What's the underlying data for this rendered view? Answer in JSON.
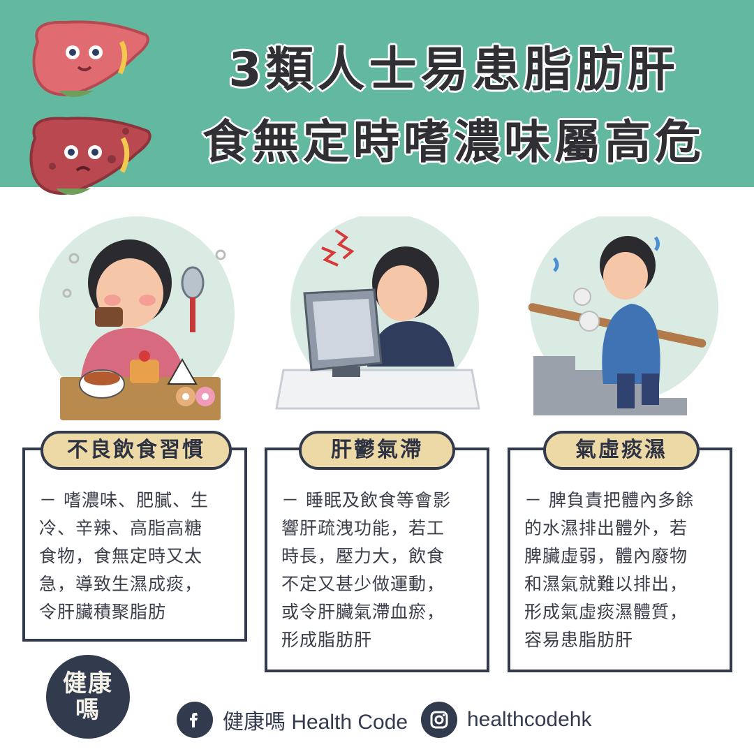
{
  "header": {
    "title_line1": "3類人士易患脂肪肝",
    "title_line2": "食無定時嗜濃味屬高危"
  },
  "cards": [
    {
      "badge": "不良飲食習慣",
      "lines": [
        "－ 嗜濃味、肥膩、生",
        "冷、辛辣、高脂高糖",
        "食物，食無定時又太",
        "急，導致生濕成痰，",
        "令肝臟積聚脂肪"
      ]
    },
    {
      "badge": "肝鬱氣滯",
      "lines": [
        "－ 睡眠及飲食等會影",
        "響肝疏洩功能，若工",
        "時長，壓力大，飲食",
        "不定又甚少做運動，",
        "或令肝臟氣滯血瘀，",
        "形成脂肪肝"
      ]
    },
    {
      "badge": "氣虛痰濕",
      "lines": [
        "－ 脾負責把體內多餘",
        "的水濕排出體外，若",
        "脾臟虛弱，體內廢物",
        "和濕氣就難以排出，",
        "形成氣虛痰濕體質，",
        "容易患脂肪肝"
      ]
    }
  ],
  "footer": {
    "logo_line1": "健康",
    "logo_line2": "嗎",
    "facebook_label": "健康嗎 Health Code",
    "instagram_label": "healthcodehk"
  },
  "colors": {
    "header_bg": "#63b9a0",
    "navy": "#323a4e",
    "badge_bg": "#edd9a6",
    "circle_bg": "#d9ebe3"
  },
  "icons": [
    "healthy-liver-icon",
    "unhealthy-liver-icon",
    "facebook-icon",
    "instagram-icon"
  ]
}
